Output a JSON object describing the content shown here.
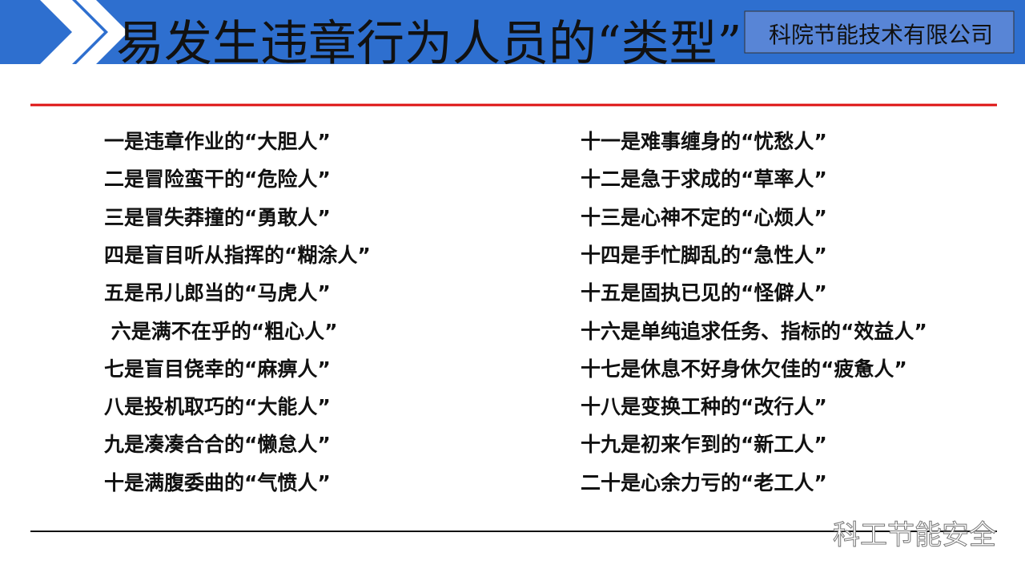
{
  "header": {
    "title": "易发生违章行为人员的“类型”",
    "company": "科院节能技术有限公司"
  },
  "left_items": [
    "一是违章作业的“大胆人”",
    "二是冒险蛮干的“危险人”",
    "三是冒失莽撞的“勇敢人”",
    "四是盲目听从指挥的“糊涂人”",
    "五是吊儿郎当的“马虎人”",
    " 六是满不在乎的“粗心人”",
    "七是盲目侥幸的“麻痹人”",
    "八是投机取巧的“大能人”",
    "九是凑凑合合的“懒怠人”",
    "十是满腹委曲的“气愤人”"
  ],
  "right_items": [
    "十一是难事缠身的“忧愁人”",
    "十二是急于求成的“草率人”",
    "十三是心神不定的“心烦人”",
    "十四是手忙脚乱的“急性人”",
    "十五是固执已见的“怪僻人”",
    "十六是单纯追求任务、指标的“效益人”",
    "十七是休息不好身休欠佳的“疲惫人”",
    "十八是变换工种的“改行人”",
    "十九是初来乍到的“新工人”",
    "二十是心余力亏的“老工人”"
  ],
  "footer": {
    "watermark": "科工节能安全"
  }
}
